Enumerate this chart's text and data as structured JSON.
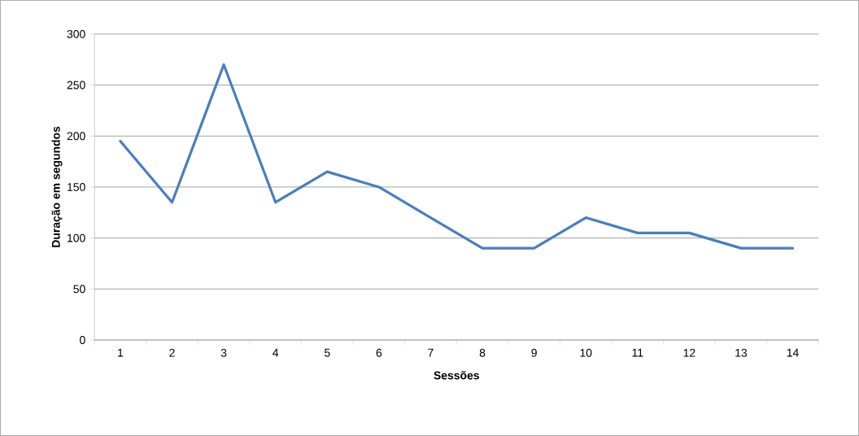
{
  "chart_data": {
    "type": "line",
    "xlabel": "Sessões",
    "ylabel": "Duração em segundos",
    "categories": [
      "1",
      "2",
      "3",
      "4",
      "5",
      "6",
      "7",
      "8",
      "9",
      "10",
      "11",
      "12",
      "13",
      "14"
    ],
    "series": [
      {
        "color": "#4a7ebb",
        "values": [
          195,
          135,
          270,
          135,
          165,
          150,
          120,
          90,
          90,
          120,
          105,
          105,
          90,
          90
        ]
      }
    ],
    "ylim": [
      0,
      300
    ],
    "yticks": [
      0,
      50,
      100,
      150,
      200,
      250,
      300
    ],
    "grid": "y",
    "legend": false,
    "marker": "none",
    "line_style": "solid"
  }
}
